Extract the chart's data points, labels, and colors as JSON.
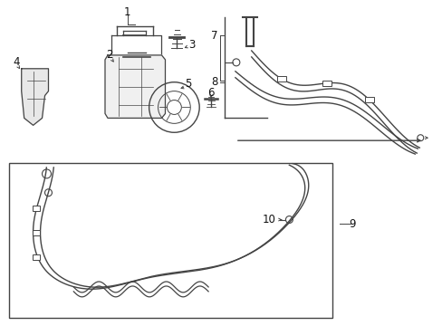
{
  "bg_color": "#ffffff",
  "line_color": "#444444",
  "label_color": "#111111",
  "fig_width": 4.89,
  "fig_height": 3.6,
  "dpi": 100
}
